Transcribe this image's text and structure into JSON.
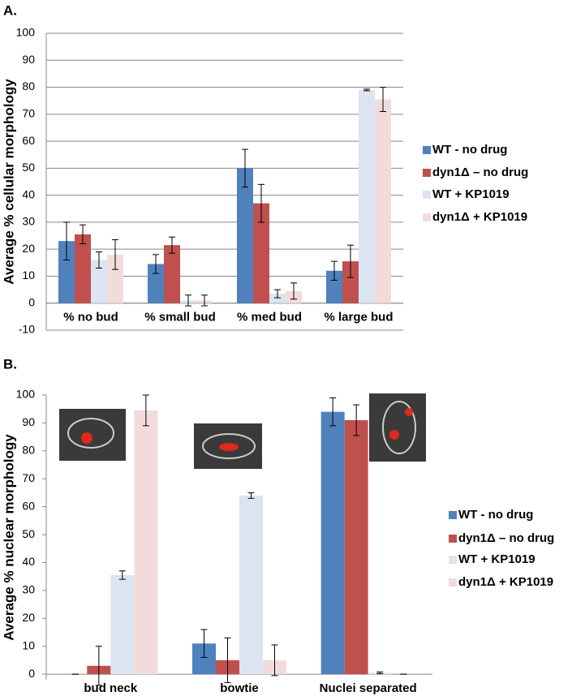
{
  "chart_data": [
    {
      "type": "bar",
      "label": "A.",
      "ylabel": "Average % cellular morphology",
      "categories": [
        "% no bud",
        "% small bud",
        "% med bud",
        "% large bud"
      ],
      "ylim": [
        -10,
        100
      ],
      "yticks": [
        -10,
        0,
        10,
        20,
        30,
        40,
        50,
        60,
        70,
        80,
        90,
        100
      ],
      "grid": true,
      "legend": "right",
      "series": [
        {
          "name": "WT - no drug",
          "color": "#4f81bd",
          "values": [
            23,
            14.5,
            50,
            12
          ],
          "errors": [
            7,
            3.5,
            7,
            3.5
          ]
        },
        {
          "name": "dyn1Δ – no drug",
          "color": "#c0504d",
          "values": [
            25.5,
            21.5,
            37,
            15.5
          ],
          "errors": [
            3.5,
            3,
            7,
            6
          ]
        },
        {
          "name": "WT + KP1019",
          "color": "#dbe5f1",
          "values": [
            16,
            1,
            3.5,
            79
          ],
          "errors": [
            3,
            2,
            1.5,
            0.3
          ]
        },
        {
          "name": "dyn1Δ + KP1019",
          "color": "#f2dcdb",
          "values": [
            18,
            1,
            4.5,
            75.5
          ],
          "errors": [
            5.5,
            2,
            3,
            4.5
          ]
        }
      ]
    },
    {
      "type": "bar",
      "label": "B.",
      "ylabel": "Average % nuclear morphology",
      "categories": [
        "bud neck",
        "bowtie",
        "Nuclei separated"
      ],
      "ylim": [
        -2,
        100
      ],
      "yticks": [
        0,
        10,
        20,
        30,
        40,
        50,
        60,
        70,
        80,
        90,
        100
      ],
      "grid": false,
      "legend": "right",
      "series": [
        {
          "name": "WT - no drug",
          "color": "#4f81bd",
          "values": [
            0,
            11,
            94
          ],
          "errors": [
            0,
            5,
            5
          ]
        },
        {
          "name": "dyn1Δ – no drug",
          "color": "#c0504d",
          "values": [
            3,
            5,
            91
          ],
          "errors": [
            7,
            8,
            5.5
          ]
        },
        {
          "name": "WT + KP1019",
          "color": "#dbe5f1",
          "values": [
            35.5,
            64,
            0.5
          ],
          "errors": [
            1.5,
            1,
            0.3
          ]
        },
        {
          "name": "dyn1Δ + KP1019",
          "color": "#f2dcdb",
          "values": [
            94.5,
            5,
            0
          ],
          "errors": [
            5.5,
            5.5,
            0
          ]
        }
      ]
    }
  ]
}
